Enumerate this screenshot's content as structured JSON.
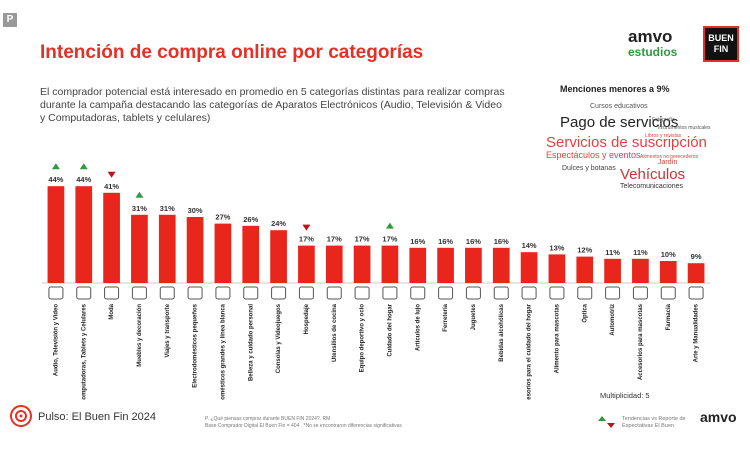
{
  "badge": "P",
  "logos": {
    "amvo": "amvo",
    "estudios": "estudios",
    "buen": "BUEN",
    "fin": "FIN",
    "footer": "amvo"
  },
  "chart_data": {
    "type": "bar",
    "title": "Intención de compra online por categorías",
    "subtitle": "El comprador potencial está interesado en promedio en 5 categorías distintas para realizar compras durante la campaña destacando las categorías de Aparatos Electrónicos (Audio, Televisión & Video y Computadoras, tablets y celulares)",
    "categories": [
      "Audio, Televisión y Video",
      "Computadoras, Tablets y Celulares",
      "Moda",
      "Muebles y decoración",
      "Viajes y transporte",
      "Electrodomésticos pequeños",
      "Electrodomésticos grandes y línea blanca",
      "Belleza y cuidado personal",
      "Consolas y Videojuegos",
      "Hospedaje",
      "Utensilios de cocina",
      "Equipo deportivo y ocio",
      "Cuidado del hogar",
      "Artículos de lujo",
      "Ferretería",
      "Juguetes",
      "Bebidas alcohólicas",
      "Accesorios para el cuidado del hogar",
      "Alimento para mascotas",
      "Óptica",
      "Automotriz",
      "Accesorios para mascotas",
      "Farmacia",
      "Arte y Manualidades"
    ],
    "values": [
      44,
      44,
      41,
      31,
      31,
      30,
      27,
      26,
      24,
      17,
      17,
      17,
      17,
      16,
      16,
      16,
      16,
      14,
      13,
      12,
      11,
      11,
      10,
      9
    ],
    "value_labels": [
      "44%",
      "44%",
      "41%",
      "31%",
      "31%",
      "30%",
      "27%",
      "26%",
      "24%",
      "17%",
      "17%",
      "17%",
      "17%",
      "16%",
      "16%",
      "16%",
      "16%",
      "14%",
      "13%",
      "12%",
      "11%",
      "11%",
      "10%",
      "9%"
    ],
    "trends": [
      "up",
      "up",
      "down",
      "up",
      null,
      null,
      null,
      null,
      null,
      "down",
      null,
      null,
      "up",
      null,
      null,
      null,
      null,
      null,
      null,
      null,
      null,
      null,
      null,
      null
    ],
    "color": "#e8261c",
    "multiplicity": "Multiplicidad: 5"
  },
  "word_cloud": {
    "title": "Menciones menores a 9%",
    "words": [
      "Cursos educativos",
      "Pago de servicios",
      "Fotografía",
      "Servicios de suscripción",
      "Espectáculos y eventos",
      "Alimentos no perecederos",
      "Jardín",
      "Dulces y botanas",
      "Vehículos",
      "Telecomunicaciones",
      "Instrumentos musicales",
      "Libros y revistas"
    ]
  },
  "footer": {
    "brand": "Pulso: El Buen Fin 2024",
    "question": "P. ¿Qué piensas comprar durante BUEN FIN 2024?. RM",
    "base": "Base Comprador Digital El Buen Fin = 404 . *No se encontraron diferencias significativas",
    "legend": "Tendencias vs Reporte de Expectativas El Buen"
  }
}
